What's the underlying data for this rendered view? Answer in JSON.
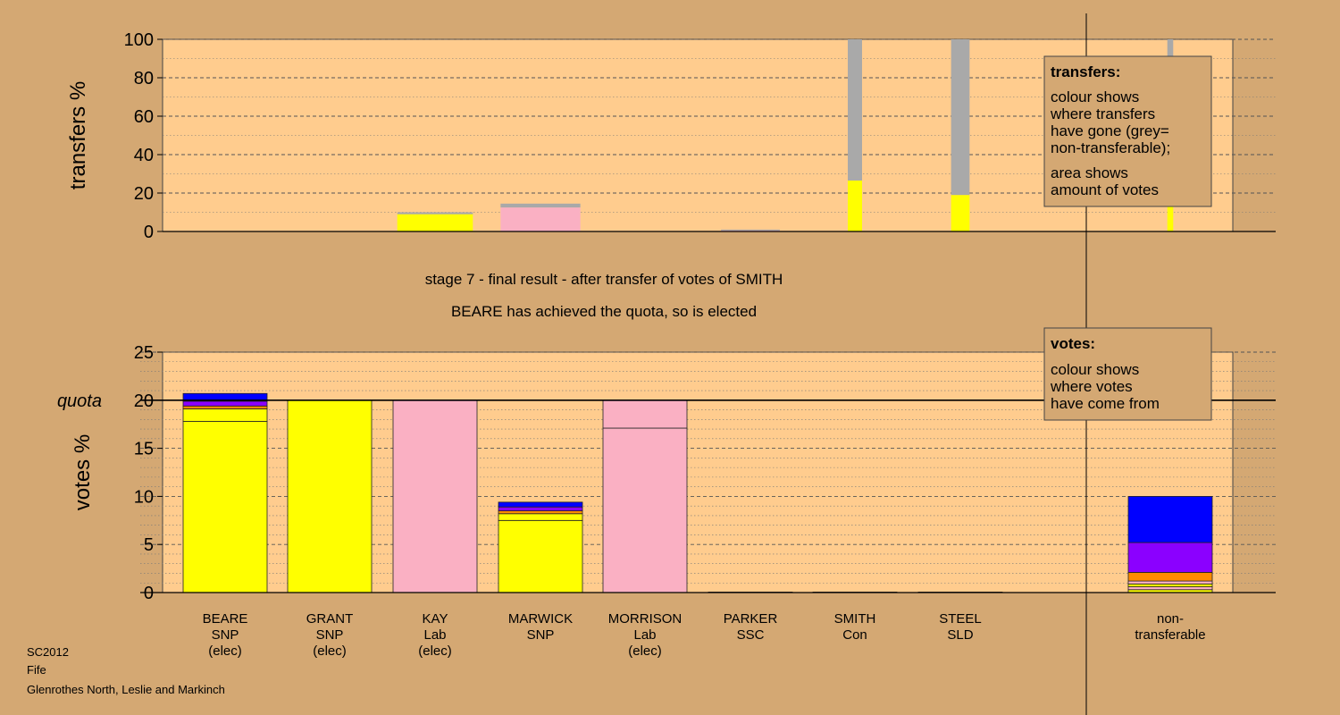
{
  "stage_title": "stage 7 - final result - after transfer of votes of SMITH",
  "stage_subtitle": "BEARE has achieved the quota, so is elected",
  "footer": {
    "code": "SC2012",
    "council": "Fife",
    "ward": "Glenrothes North, Leslie and Markinch"
  },
  "colors": {
    "background": "#d4a873",
    "plot_bg": "#ffcc8e",
    "SNP": "#ffff00",
    "Lab": "#fab0c3",
    "Con": "#0000ff",
    "SLD": "#ff8c00",
    "SSC": "#8b00ff",
    "non_transferable": "#a9a9a9"
  },
  "legend_transfers": {
    "title": "transfers:",
    "lines": [
      "colour shows",
      "where transfers",
      "have gone (grey=",
      "non-transferable);",
      "area shows",
      "amount of votes"
    ]
  },
  "legend_votes": {
    "title": "votes:",
    "lines": [
      "colour shows",
      "where votes",
      "have come from"
    ]
  },
  "chart_data": [
    {
      "type": "bar",
      "ylabel": "transfers %",
      "ylim": [
        0,
        100
      ],
      "yticks": [
        "0",
        "20",
        "40",
        "60",
        "80",
        "100"
      ],
      "grid": true,
      "bars": [
        {
          "column": 2,
          "segments": [
            {
              "party": "SNP",
              "value": 9
            },
            {
              "party": "non_transferable",
              "value": 1
            }
          ],
          "width_share": 0.9
        },
        {
          "column": 3,
          "segments": [
            {
              "party": "Lab",
              "value": 12.5
            },
            {
              "party": "non_transferable",
              "value": 2
            }
          ],
          "width_share": 0.95
        },
        {
          "column": 5,
          "segments": [
            {
              "party": "Lab",
              "value": 0.5
            },
            {
              "party": "non_transferable",
              "value": 0.5
            }
          ],
          "width_share": 0.7
        },
        {
          "column": 6,
          "segments": [
            {
              "party": "SNP",
              "value": 26.5
            },
            {
              "party": "non_transferable",
              "value": 73.5
            }
          ],
          "width_share": 0.17
        },
        {
          "column": 7,
          "segments": [
            {
              "party": "SNP",
              "value": 19
            },
            {
              "party": "non_transferable",
              "value": 81
            }
          ],
          "width_share": 0.22
        },
        {
          "column": 8,
          "segments": [
            {
              "party": "SNP",
              "value": 29.5
            },
            {
              "party": "non_transferable",
              "value": 70.5
            }
          ],
          "width_share": 0.07
        }
      ]
    },
    {
      "type": "bar",
      "ylabel": "votes %",
      "ylim": [
        0,
        25
      ],
      "yticks": [
        "0",
        "5",
        "10",
        "15",
        "20",
        "25"
      ],
      "quota": 20,
      "quota_label": "quota",
      "grid": true,
      "categories": [
        [
          "BEARE",
          "SNP",
          "(elec)"
        ],
        [
          "GRANT",
          "SNP",
          "(elec)"
        ],
        [
          "KAY",
          "Lab",
          "(elec)"
        ],
        [
          "MARWICK",
          "SNP"
        ],
        [
          "MORRISON",
          "Lab",
          "(elec)"
        ],
        [
          "PARKER",
          "SSC"
        ],
        [
          "SMITH",
          "Con"
        ],
        [
          "STEEL",
          "SLD"
        ],
        [
          "non-",
          "transferable"
        ]
      ],
      "bars": [
        {
          "column": 0,
          "segments": [
            {
              "party": "SNP",
              "value": 17.8
            },
            {
              "party": "SNP",
              "value": 1.3
            },
            {
              "party": "SLD",
              "value": 0.3
            },
            {
              "party": "SSC",
              "value": 0.5
            },
            {
              "party": "Con",
              "value": 0.8
            }
          ]
        },
        {
          "column": 1,
          "segments": [
            {
              "party": "SNP",
              "value": 20
            }
          ]
        },
        {
          "column": 2,
          "segments": [
            {
              "party": "Lab",
              "value": 20
            }
          ]
        },
        {
          "column": 3,
          "segments": [
            {
              "party": "SNP",
              "value": 7.5
            },
            {
              "party": "SNP",
              "value": 0.7
            },
            {
              "party": "SLD",
              "value": 0.3
            },
            {
              "party": "SSC",
              "value": 0.4
            },
            {
              "party": "Con",
              "value": 0.5
            }
          ]
        },
        {
          "column": 4,
          "segments": [
            {
              "party": "Lab",
              "value": 17.1
            },
            {
              "party": "Lab",
              "value": 2.9
            }
          ]
        },
        {
          "column": 5,
          "segments": [
            {
              "party": "SSC",
              "value": 0.05
            }
          ]
        },
        {
          "column": 6,
          "segments": [
            {
              "party": "Con",
              "value": 0.05
            }
          ]
        },
        {
          "column": 7,
          "segments": [
            {
              "party": "SLD",
              "value": 0.05
            }
          ]
        },
        {
          "column": 8,
          "segments": [
            {
              "party": "SNP",
              "value": 0.3
            },
            {
              "party": "Lab",
              "value": 0.3
            },
            {
              "party": "SNP",
              "value": 0.3
            },
            {
              "party": "Lab",
              "value": 0.3
            },
            {
              "party": "SLD",
              "value": 0.9
            },
            {
              "party": "SSC",
              "value": 3.1
            },
            {
              "party": "Con",
              "value": 4.8
            }
          ]
        }
      ]
    }
  ]
}
